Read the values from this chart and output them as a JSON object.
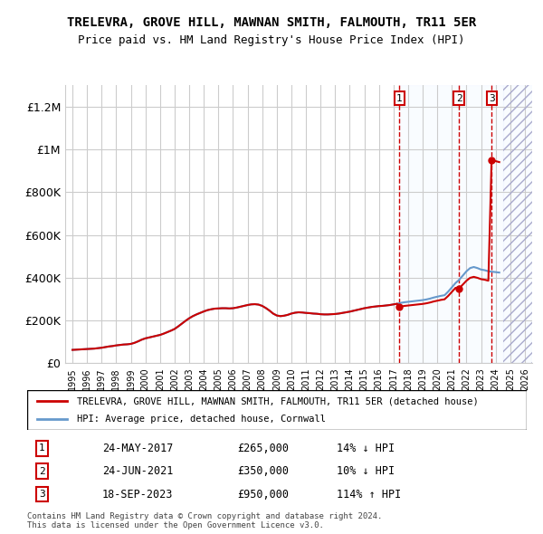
{
  "title": "TRELEVRA, GROVE HILL, MAWNAN SMITH, FALMOUTH, TR11 5ER",
  "subtitle": "Price paid vs. HM Land Registry's House Price Index (HPI)",
  "legend_line1": "TRELEVRA, GROVE HILL, MAWNAN SMITH, FALMOUTH, TR11 5ER (detached house)",
  "legend_line2": "HPI: Average price, detached house, Cornwall",
  "footer1": "Contains HM Land Registry data © Crown copyright and database right 2024.",
  "footer2": "This data is licensed under the Open Government Licence v3.0.",
  "sale_labels": [
    "1",
    "2",
    "3"
  ],
  "sale_dates": [
    "24-MAY-2017",
    "24-JUN-2021",
    "18-SEP-2023"
  ],
  "sale_prices": [
    265000,
    350000,
    950000
  ],
  "sale_hpi_pct": [
    "14% ↓ HPI",
    "10% ↓ HPI",
    "114% ↑ HPI"
  ],
  "sale_years": [
    2017.39,
    2021.48,
    2023.72
  ],
  "ylim": [
    0,
    1300000
  ],
  "yticks": [
    0,
    200000,
    400000,
    600000,
    800000,
    1000000,
    1200000
  ],
  "ytick_labels": [
    "£0",
    "£200K",
    "£400K",
    "£600K",
    "£800K",
    "£1M",
    "£1.2M"
  ],
  "xlim": [
    1994.5,
    2026.5
  ],
  "hpi_color": "#6699cc",
  "property_color": "#cc0000",
  "shade_color": "#ddeeff",
  "hatch_start": 2024.5,
  "background_color": "#ffffff",
  "grid_color": "#cccccc",
  "hpi_data": {
    "years": [
      1995.0,
      1995.25,
      1995.5,
      1995.75,
      1996.0,
      1996.25,
      1996.5,
      1996.75,
      1997.0,
      1997.25,
      1997.5,
      1997.75,
      1998.0,
      1998.25,
      1998.5,
      1998.75,
      1999.0,
      1999.25,
      1999.5,
      1999.75,
      2000.0,
      2000.25,
      2000.5,
      2000.75,
      2001.0,
      2001.25,
      2001.5,
      2001.75,
      2002.0,
      2002.25,
      2002.5,
      2002.75,
      2003.0,
      2003.25,
      2003.5,
      2003.75,
      2004.0,
      2004.25,
      2004.5,
      2004.75,
      2005.0,
      2005.25,
      2005.5,
      2005.75,
      2006.0,
      2006.25,
      2006.5,
      2006.75,
      2007.0,
      2007.25,
      2007.5,
      2007.75,
      2008.0,
      2008.25,
      2008.5,
      2008.75,
      2009.0,
      2009.25,
      2009.5,
      2009.75,
      2010.0,
      2010.25,
      2010.5,
      2010.75,
      2011.0,
      2011.25,
      2011.5,
      2011.75,
      2012.0,
      2012.25,
      2012.5,
      2012.75,
      2013.0,
      2013.25,
      2013.5,
      2013.75,
      2014.0,
      2014.25,
      2014.5,
      2014.75,
      2015.0,
      2015.25,
      2015.5,
      2015.75,
      2016.0,
      2016.25,
      2016.5,
      2016.75,
      2017.0,
      2017.25,
      2017.5,
      2017.75,
      2018.0,
      2018.25,
      2018.5,
      2018.75,
      2019.0,
      2019.25,
      2019.5,
      2019.75,
      2020.0,
      2020.25,
      2020.5,
      2020.75,
      2021.0,
      2021.25,
      2021.5,
      2021.75,
      2022.0,
      2022.25,
      2022.5,
      2022.75,
      2023.0,
      2023.25,
      2023.5,
      2023.75,
      2024.0,
      2024.25
    ],
    "values": [
      62000,
      63000,
      64000,
      65000,
      66000,
      67000,
      68000,
      70000,
      72000,
      75000,
      78000,
      80000,
      83000,
      85000,
      87000,
      88000,
      90000,
      95000,
      102000,
      110000,
      116000,
      120000,
      124000,
      128000,
      132000,
      138000,
      145000,
      152000,
      160000,
      172000,
      185000,
      198000,
      210000,
      220000,
      228000,
      235000,
      242000,
      248000,
      252000,
      255000,
      256000,
      257000,
      257000,
      256000,
      257000,
      260000,
      264000,
      268000,
      272000,
      275000,
      276000,
      274000,
      268000,
      258000,
      246000,
      232000,
      223000,
      220000,
      222000,
      226000,
      232000,
      236000,
      238000,
      237000,
      235000,
      234000,
      232000,
      231000,
      229000,
      228000,
      228000,
      229000,
      230000,
      232000,
      235000,
      238000,
      241000,
      245000,
      249000,
      253000,
      257000,
      260000,
      263000,
      265000,
      267000,
      268000,
      270000,
      272000,
      275000,
      278000,
      282000,
      285000,
      287000,
      289000,
      291000,
      293000,
      295000,
      298000,
      302000,
      307000,
      311000,
      315000,
      318000,
      335000,
      355000,
      375000,
      390000,
      410000,
      430000,
      445000,
      450000,
      445000,
      438000,
      435000,
      430000,
      428000,
      426000,
      424000
    ]
  },
  "property_data": {
    "years": [
      1995.0,
      2017.39,
      2021.48,
      2023.72
    ],
    "values": [
      62000,
      265000,
      350000,
      950000
    ]
  }
}
